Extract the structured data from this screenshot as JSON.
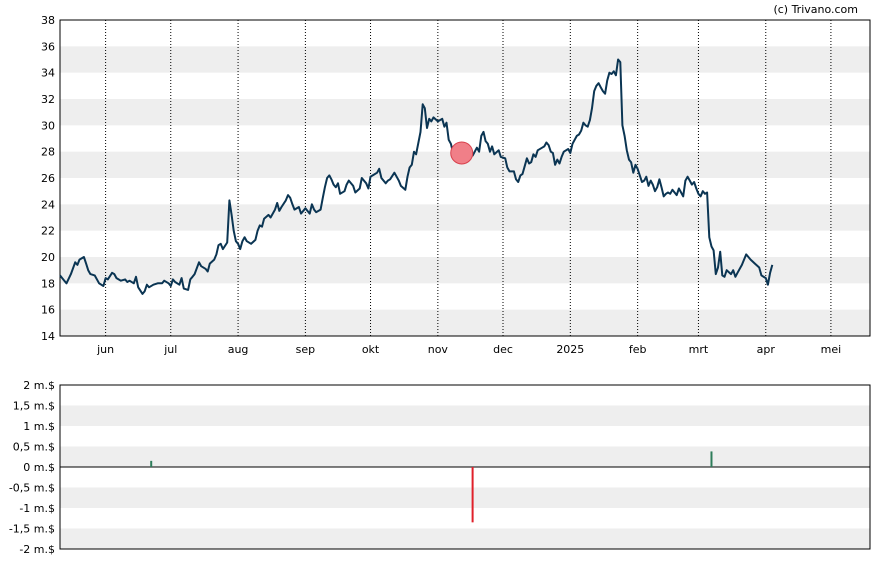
{
  "copyright": "(c) Trivano.com",
  "colors": {
    "price_line": "#0b3553",
    "band": "#eeeeee",
    "marker_fill": "#f07f88",
    "marker_stroke": "#d8404c",
    "bar_positive": "#2e7d5a",
    "bar_negative": "#e0202a"
  },
  "chart_data": [
    {
      "type": "line",
      "title": "",
      "ylim": [
        14,
        38
      ],
      "y_ticks": [
        14,
        16,
        18,
        20,
        22,
        24,
        26,
        28,
        30,
        32,
        34,
        36,
        38
      ],
      "x_month_labels": [
        "jun",
        "jul",
        "aug",
        "sep",
        "okt",
        "nov",
        "dec",
        "2025",
        "feb",
        "mrt",
        "apr",
        "mei"
      ],
      "x_month_days": [
        21,
        51,
        82,
        113,
        143,
        174,
        204,
        235,
        266,
        294,
        325,
        355
      ],
      "x_range_days": [
        0,
        373
      ],
      "grid_vertical": "dotted, at month starts",
      "horizontal_bands": "alternating grey bands",
      "series": [
        {
          "name": "",
          "points": [
            [
              0,
              18.6
            ],
            [
              2,
              18.2
            ],
            [
              3,
              18.0
            ],
            [
              5,
              18.7
            ],
            [
              7,
              19.6
            ],
            [
              8,
              19.4
            ],
            [
              9,
              19.8
            ],
            [
              11,
              20.0
            ],
            [
              12,
              19.5
            ],
            [
              13,
              19.0
            ],
            [
              14,
              18.7
            ],
            [
              16,
              18.6
            ],
            [
              18,
              18.0
            ],
            [
              20,
              17.8
            ],
            [
              21,
              18.4
            ],
            [
              22,
              18.3
            ],
            [
              24,
              18.8
            ],
            [
              25,
              18.7
            ],
            [
              26,
              18.4
            ],
            [
              28,
              18.2
            ],
            [
              30,
              18.3
            ],
            [
              31,
              18.1
            ],
            [
              32,
              18.2
            ],
            [
              34,
              18.0
            ],
            [
              35,
              18.5
            ],
            [
              36,
              17.7
            ],
            [
              38,
              17.2
            ],
            [
              39,
              17.4
            ],
            [
              40,
              17.9
            ],
            [
              41,
              17.7
            ],
            [
              43,
              17.9
            ],
            [
              45,
              18.0
            ],
            [
              47,
              18.0
            ],
            [
              48,
              18.2
            ],
            [
              50,
              18.0
            ],
            [
              51,
              17.8
            ],
            [
              52,
              18.3
            ],
            [
              53,
              18.1
            ],
            [
              55,
              17.9
            ],
            [
              56,
              18.4
            ],
            [
              57,
              17.6
            ],
            [
              59,
              17.5
            ],
            [
              60,
              18.3
            ],
            [
              61,
              18.5
            ],
            [
              62,
              18.7
            ],
            [
              64,
              19.6
            ],
            [
              65,
              19.3
            ],
            [
              67,
              19.1
            ],
            [
              68,
              18.9
            ],
            [
              69,
              19.5
            ],
            [
              71,
              19.8
            ],
            [
              72,
              20.2
            ],
            [
              73,
              20.9
            ],
            [
              74,
              21.0
            ],
            [
              75,
              20.6
            ],
            [
              77,
              21.1
            ],
            [
              78,
              24.3
            ],
            [
              79,
              23.2
            ],
            [
              80,
              22.0
            ],
            [
              81,
              21.2
            ],
            [
              82,
              21.0
            ],
            [
              83,
              20.6
            ],
            [
              84,
              21.2
            ],
            [
              85,
              21.5
            ],
            [
              86,
              21.2
            ],
            [
              88,
              21.0
            ],
            [
              90,
              21.3
            ],
            [
              91,
              22.0
            ],
            [
              92,
              22.4
            ],
            [
              93,
              22.3
            ],
            [
              94,
              22.9
            ],
            [
              96,
              23.2
            ],
            [
              97,
              23.0
            ],
            [
              99,
              23.6
            ],
            [
              100,
              24.1
            ],
            [
              101,
              23.5
            ],
            [
              102,
              23.8
            ],
            [
              104,
              24.3
            ],
            [
              105,
              24.7
            ],
            [
              106,
              24.5
            ],
            [
              107,
              24.0
            ],
            [
              108,
              23.6
            ],
            [
              110,
              23.8
            ],
            [
              111,
              23.3
            ],
            [
              113,
              23.7
            ],
            [
              115,
              23.3
            ],
            [
              116,
              24.0
            ],
            [
              117,
              23.6
            ],
            [
              118,
              23.4
            ],
            [
              120,
              23.6
            ],
            [
              121,
              24.5
            ],
            [
              122,
              25.3
            ],
            [
              123,
              26.0
            ],
            [
              124,
              26.2
            ],
            [
              125,
              25.9
            ],
            [
              126,
              25.5
            ],
            [
              127,
              25.3
            ],
            [
              128,
              25.6
            ],
            [
              129,
              24.8
            ],
            [
              131,
              25.0
            ],
            [
              132,
              25.5
            ],
            [
              133,
              25.8
            ],
            [
              135,
              25.4
            ],
            [
              136,
              24.9
            ],
            [
              138,
              25.2
            ],
            [
              139,
              26.0
            ],
            [
              141,
              25.6
            ],
            [
              142,
              25.2
            ],
            [
              143,
              26.1
            ],
            [
              144,
              26.2
            ],
            [
              146,
              26.4
            ],
            [
              147,
              26.7
            ],
            [
              148,
              26.0
            ],
            [
              150,
              25.6
            ],
            [
              151,
              25.8
            ],
            [
              152,
              25.9
            ],
            [
              154,
              26.4
            ],
            [
              156,
              25.8
            ],
            [
              157,
              25.4
            ],
            [
              159,
              25.1
            ],
            [
              160,
              26.1
            ],
            [
              161,
              26.8
            ],
            [
              162,
              27.0
            ],
            [
              163,
              28.0
            ],
            [
              164,
              27.8
            ],
            [
              166,
              29.5
            ],
            [
              167,
              31.6
            ],
            [
              168,
              31.3
            ],
            [
              169,
              29.8
            ],
            [
              170,
              30.5
            ],
            [
              171,
              30.3
            ],
            [
              172,
              30.6
            ],
            [
              174,
              30.3
            ],
            [
              176,
              30.5
            ],
            [
              177,
              29.9
            ],
            [
              178,
              30.2
            ],
            [
              179,
              28.9
            ],
            [
              180,
              28.6
            ],
            [
              181,
              27.9
            ],
            [
              182,
              27.3
            ],
            [
              183,
              27.6
            ],
            [
              184,
              27.2
            ],
            [
              185,
              28.3
            ],
            [
              187,
              28.0
            ],
            [
              188,
              27.4
            ],
            [
              189,
              28.2
            ],
            [
              190,
              27.7
            ],
            [
              192,
              28.3
            ],
            [
              193,
              28.0
            ],
            [
              194,
              29.2
            ],
            [
              195,
              29.5
            ],
            [
              196,
              28.8
            ],
            [
              197,
              28.6
            ],
            [
              198,
              28.0
            ],
            [
              199,
              28.4
            ],
            [
              200,
              27.8
            ],
            [
              202,
              28.1
            ],
            [
              203,
              27.6
            ],
            [
              205,
              27.5
            ],
            [
              206,
              26.8
            ],
            [
              207,
              26.5
            ],
            [
              209,
              26.5
            ],
            [
              210,
              25.9
            ],
            [
              211,
              25.7
            ],
            [
              212,
              26.2
            ],
            [
              213,
              26.3
            ],
            [
              214,
              26.9
            ],
            [
              215,
              27.5
            ],
            [
              216,
              27.1
            ],
            [
              217,
              27.2
            ],
            [
              218,
              27.8
            ],
            [
              219,
              27.6
            ],
            [
              220,
              28.1
            ],
            [
              222,
              28.3
            ],
            [
              223,
              28.4
            ],
            [
              224,
              28.7
            ],
            [
              225,
              28.5
            ],
            [
              226,
              28.0
            ],
            [
              227,
              27.9
            ],
            [
              228,
              27.0
            ],
            [
              229,
              27.4
            ],
            [
              230,
              27.1
            ],
            [
              231,
              27.6
            ],
            [
              232,
              28.0
            ],
            [
              234,
              28.2
            ],
            [
              235,
              27.9
            ],
            [
              236,
              28.6
            ],
            [
              238,
              29.2
            ],
            [
              239,
              29.3
            ],
            [
              240,
              29.6
            ],
            [
              241,
              30.2
            ],
            [
              242,
              30.0
            ],
            [
              243,
              29.9
            ],
            [
              244,
              30.4
            ],
            [
              245,
              31.3
            ],
            [
              246,
              32.6
            ],
            [
              247,
              33.0
            ],
            [
              248,
              33.2
            ],
            [
              249,
              32.9
            ],
            [
              250,
              32.6
            ],
            [
              251,
              32.4
            ],
            [
              252,
              33.4
            ],
            [
              253,
              34.0
            ],
            [
              254,
              33.9
            ],
            [
              255,
              34.1
            ],
            [
              256,
              33.8
            ],
            [
              257,
              35.0
            ],
            [
              258,
              34.8
            ],
            [
              259,
              30.0
            ],
            [
              260,
              29.2
            ],
            [
              261,
              28.1
            ],
            [
              262,
              27.4
            ],
            [
              263,
              27.2
            ],
            [
              264,
              26.4
            ],
            [
              265,
              27.0
            ],
            [
              266,
              26.7
            ],
            [
              267,
              26.2
            ],
            [
              268,
              25.7
            ],
            [
              269,
              25.8
            ],
            [
              270,
              26.1
            ],
            [
              271,
              25.4
            ],
            [
              272,
              25.8
            ],
            [
              273,
              25.5
            ],
            [
              274,
              25.0
            ],
            [
              275,
              25.3
            ],
            [
              276,
              25.9
            ],
            [
              277,
              25.3
            ],
            [
              278,
              24.6
            ],
            [
              279,
              24.8
            ],
            [
              280,
              24.9
            ],
            [
              281,
              24.8
            ],
            [
              282,
              25.1
            ],
            [
              284,
              24.7
            ],
            [
              285,
              25.2
            ],
            [
              286,
              24.9
            ],
            [
              287,
              24.6
            ],
            [
              288,
              25.8
            ],
            [
              289,
              26.1
            ],
            [
              290,
              25.8
            ],
            [
              291,
              25.5
            ],
            [
              292,
              25.7
            ],
            [
              293,
              25.2
            ],
            [
              294,
              24.8
            ],
            [
              295,
              24.6
            ],
            [
              296,
              25.0
            ],
            [
              297,
              24.8
            ],
            [
              298,
              24.9
            ],
            [
              299,
              21.5
            ],
            [
              300,
              20.8
            ],
            [
              301,
              20.5
            ],
            [
              302,
              18.7
            ],
            [
              303,
              19.2
            ],
            [
              304,
              20.4
            ],
            [
              305,
              18.6
            ],
            [
              306,
              18.5
            ],
            [
              307,
              19.0
            ],
            [
              309,
              18.7
            ],
            [
              310,
              19.0
            ],
            [
              311,
              18.5
            ],
            [
              312,
              18.8
            ],
            [
              314,
              19.4
            ],
            [
              316,
              20.2
            ],
            [
              318,
              19.8
            ],
            [
              320,
              19.5
            ],
            [
              322,
              19.2
            ],
            [
              323,
              18.6
            ],
            [
              325,
              18.4
            ],
            [
              326,
              17.9
            ],
            [
              327,
              18.8
            ],
            [
              328,
              19.4
            ]
          ]
        }
      ],
      "markers": [
        {
          "x": 185,
          "y": 27.9
        }
      ]
    },
    {
      "type": "bar",
      "title": "",
      "ylim": [
        -2,
        2
      ],
      "y_ticks": [
        2,
        1.5,
        1,
        0.5,
        0,
        -0.5,
        -1,
        -1.5,
        -2
      ],
      "y_tick_labels": [
        "2 m.$",
        "1,5 m.$",
        "1 m.$",
        "0,5 m.$",
        "0 m.$",
        "-0,5 m.$",
        "-1 m.$",
        "-1,5 m.$",
        "-2 m.$"
      ],
      "horizontal_bands": "alternating grey bands",
      "bars": [
        {
          "x": 42,
          "value": 0.15
        },
        {
          "x": 190,
          "value": -1.35
        },
        {
          "x": 300,
          "value": 0.38
        }
      ]
    }
  ]
}
